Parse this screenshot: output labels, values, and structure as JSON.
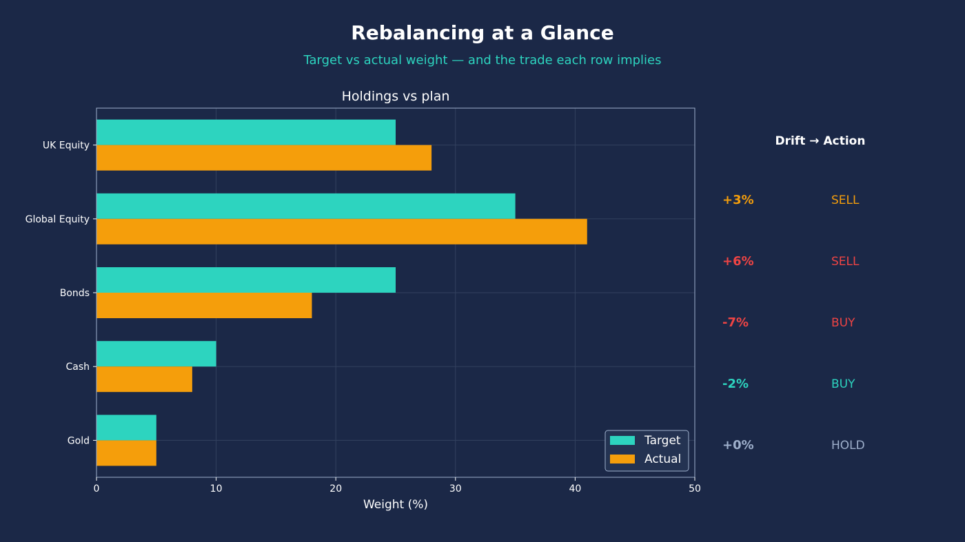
{
  "title": "Rebalancing at a Glance",
  "subtitle": "Target vs actual weight — and the trade each row implies",
  "chart_data": {
    "type": "bar",
    "orientation": "horizontal",
    "title": "Holdings vs plan",
    "xlabel": "Weight (%)",
    "ylabel": "",
    "xlim": [
      0,
      50
    ],
    "x_ticks": [
      "0",
      "10",
      "20",
      "30",
      "40",
      "50"
    ],
    "grid": true,
    "legend_position": "bottom-right",
    "categories": [
      "UK Equity",
      "Global Equity",
      "Bonds",
      "Cash",
      "Gold"
    ],
    "series": [
      {
        "name": "Target",
        "color": "#2dd4bf",
        "values": [
          25,
          35,
          25,
          10,
          5
        ]
      },
      {
        "name": "Actual",
        "color": "#f59e0b",
        "values": [
          28,
          41,
          18,
          8,
          5
        ]
      }
    ]
  },
  "drift_panel": {
    "title": "Drift → Action",
    "rows": [
      {
        "drift": "+3%",
        "action": "SELL",
        "color": "#f59e0b"
      },
      {
        "drift": "+6%",
        "action": "SELL",
        "color": "#ef4444"
      },
      {
        "drift": "-7%",
        "action": "BUY",
        "color": "#ef4444"
      },
      {
        "drift": "-2%",
        "action": "BUY",
        "color": "#2dd4bf"
      },
      {
        "drift": "+0%",
        "action": "HOLD",
        "color": "#9fb0cc"
      }
    ]
  }
}
